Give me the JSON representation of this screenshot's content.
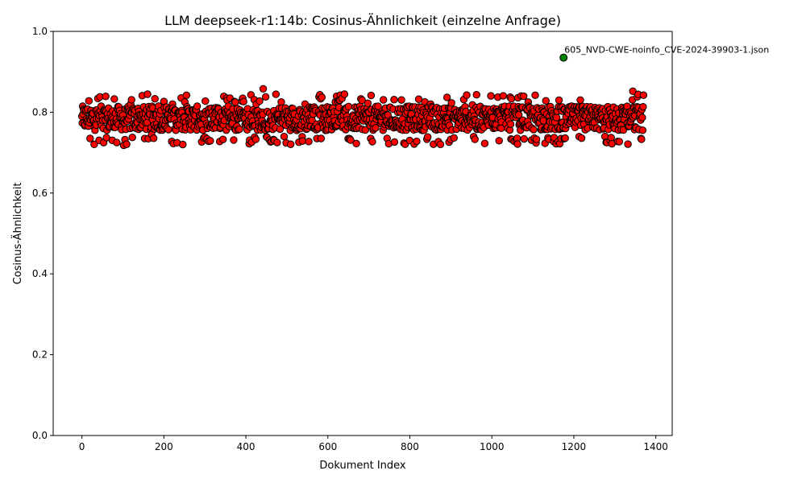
{
  "chart_data": {
    "type": "scatter",
    "title": "LLM deepseek-r1:14b: Cosinus-Ähnlichkeit (einzelne Anfrage)",
    "xlabel": "Dokument Index",
    "ylabel": "Cosinus-Ähnlichkeit",
    "xlim": [
      -70,
      1440
    ],
    "ylim": [
      0.0,
      1.0
    ],
    "xticks": [
      0,
      200,
      400,
      600,
      800,
      1000,
      1200,
      1400
    ],
    "yticks": [
      0.0,
      0.2,
      0.4,
      0.6,
      0.8,
      1.0
    ],
    "xtick_labels": [
      "0",
      "200",
      "400",
      "600",
      "800",
      "1000",
      "1200",
      "1400"
    ],
    "ytick_labels": [
      "0.0",
      "0.2",
      "0.4",
      "0.6",
      "0.8",
      "1.0"
    ],
    "grid": false,
    "series": [
      {
        "marker_color": "#ff0000",
        "edge_color": "#000000",
        "x_range": [
          0,
          1370
        ],
        "typical_range": [
          0.75,
          0.82
        ],
        "values": [
          0.79,
          0.828,
          0.805,
          0.78,
          0.765,
          0.725,
          0.718,
          0.82,
          0.79,
          0.735,
          0.745,
          0.815,
          0.78,
          0.82,
          0.77,
          0.842,
          0.805,
          0.79,
          0.76,
          0.785,
          0.8,
          0.815,
          0.825,
          0.79,
          0.722,
          0.82,
          0.858,
          0.78,
          0.725,
          0.74,
          0.8,
          0.765,
          0.82,
          0.78,
          0.838,
          0.795,
          0.81,
          0.83,
          0.79,
          0.76,
          0.833,
          0.822,
          0.805,
          0.79,
          0.722,
          0.78,
          0.762,
          0.73,
          0.728,
          0.8,
          0.82,
          0.775,
          0.81,
          0.823,
          0.79,
          0.77,
          0.818,
          0.8,
          0.78,
          0.76,
          0.792,
          0.8,
          0.728,
          0.84,
          0.825,
          0.842,
          0.81,
          0.79,
          0.722,
          0.76,
          0.78,
          0.805,
          0.77,
          0.8,
          0.785,
          0.74,
          0.722,
          0.798,
          0.805,
          0.852
        ]
      },
      {
        "name": "605_NVD-CWE-noinfo_CVE-2024-39903-1.json",
        "marker_color": "#008000",
        "edge_color": "#000000",
        "x": [
          1175
        ],
        "y": [
          0.935
        ]
      }
    ],
    "annotations": [
      {
        "text": "605_NVD-CWE-noinfo_CVE-2024-39903-1.json",
        "x": 1175,
        "y": 0.935
      }
    ],
    "total_points": 1371
  }
}
